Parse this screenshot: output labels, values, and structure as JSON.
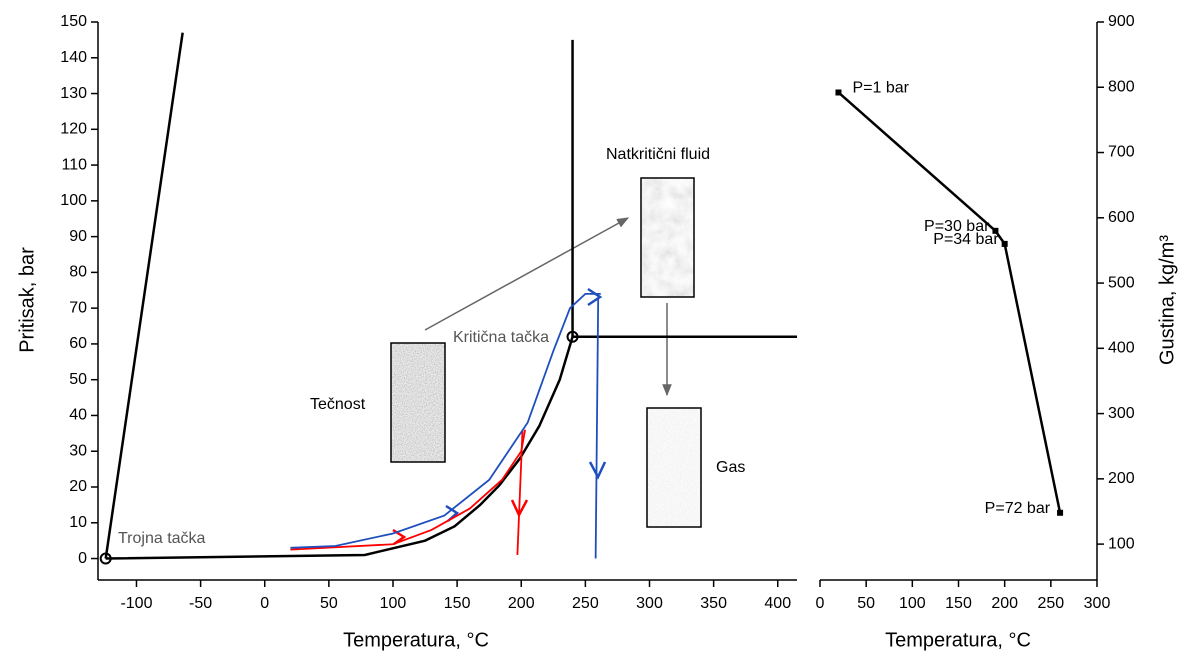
{
  "chart_data": [
    {
      "type": "line",
      "xlabel": "Temperatura, °C",
      "ylabel": "Pritisak, bar",
      "xlim": [
        -130,
        415
      ],
      "ylim": [
        -6,
        150
      ],
      "xticks": [
        -100,
        -50,
        0,
        50,
        100,
        150,
        200,
        250,
        300,
        350,
        400
      ],
      "yticks": [
        0,
        10,
        20,
        30,
        40,
        50,
        60,
        70,
        80,
        90,
        100,
        110,
        120,
        130,
        140,
        150
      ],
      "annotations": [
        "Trojna tačka",
        "Kritična tačka",
        "Tečnost",
        "Natkritični fluid",
        "Gas"
      ],
      "series": [
        {
          "color": "#000000",
          "x": [
            -124,
            78,
            125,
            148,
            168,
            183,
            199,
            214,
            230,
            240
          ],
          "values": [
            0,
            1,
            5,
            9,
            15,
            20.5,
            28,
            37,
            50,
            62
          ]
        },
        {
          "color": "#000000",
          "x": [
            -124,
            -64
          ],
          "values": [
            0,
            147
          ]
        },
        {
          "color": "#000000",
          "x": [
            240,
            240
          ],
          "values": [
            62,
            145
          ]
        },
        {
          "color": "#000000",
          "x": [
            240,
            415
          ],
          "values": [
            62,
            62
          ]
        },
        {
          "color": "#ff0000",
          "x": [
            20,
            100,
            130,
            160,
            185,
            200,
            203
          ],
          "values": [
            2.5,
            4,
            8,
            14,
            22,
            30,
            36
          ]
        },
        {
          "color": "#ff0000",
          "x": [
            201,
            197
          ],
          "values": [
            36,
            1
          ]
        },
        {
          "color": "#1f4fbf",
          "x": [
            20,
            55,
            100,
            140,
            175,
            205,
            225,
            238,
            250,
            262
          ],
          "values": [
            3,
            3.5,
            7,
            12,
            22,
            38,
            58,
            70,
            74,
            74
          ]
        },
        {
          "color": "#1f4fbf",
          "x": [
            260,
            258
          ],
          "values": [
            73,
            0
          ]
        }
      ]
    },
    {
      "type": "line",
      "yaxis_side": "right",
      "xlabel": "Temperatura, °C",
      "ylabel": "Gustina, kg/m³",
      "xlim": [
        0,
        300
      ],
      "ylim": [
        45,
        900
      ],
      "xticks": [
        0,
        50,
        100,
        150,
        200,
        250,
        300
      ],
      "yticks": [
        100,
        200,
        300,
        400,
        500,
        600,
        700,
        800,
        900
      ],
      "series": [
        {
          "color": "#000000",
          "x": [
            20,
            190,
            200,
            260
          ],
          "values": [
            792,
            580,
            560,
            148
          ],
          "point_labels": [
            "P=1 bar",
            "P=30 bar",
            "P=34 bar",
            "P=72 bar"
          ]
        }
      ]
    }
  ]
}
